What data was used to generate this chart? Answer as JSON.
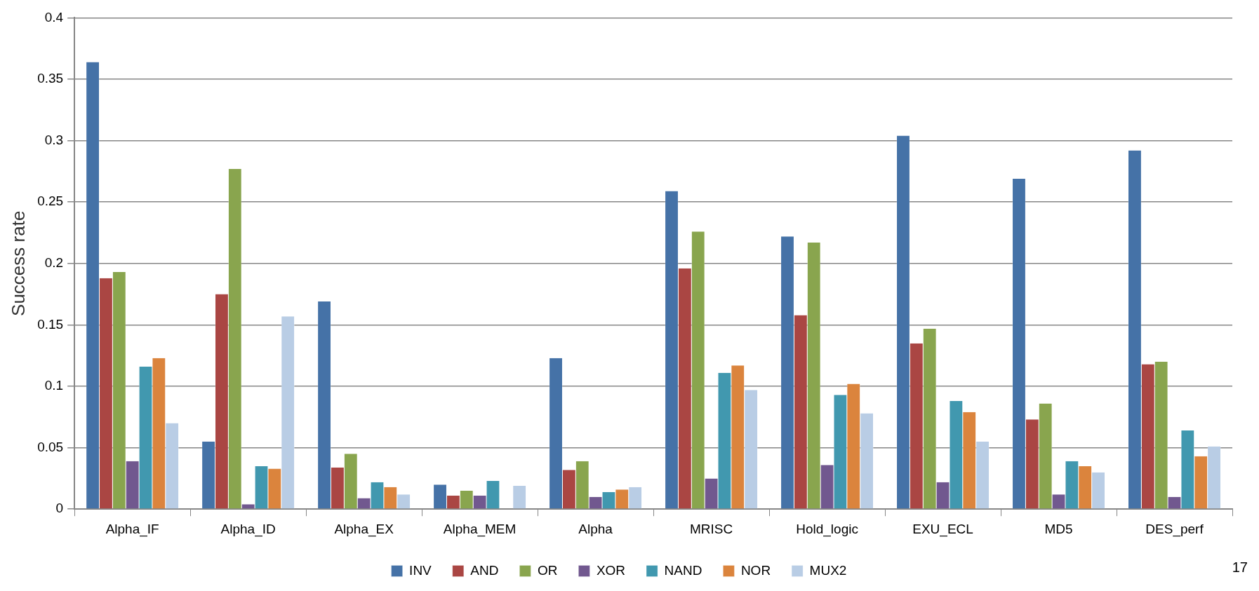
{
  "chart_data": {
    "type": "bar",
    "ylabel": "Success rate",
    "categories": [
      "Alpha_IF",
      "Alpha_ID",
      "Alpha_EX",
      "Alpha_MEM",
      "Alpha",
      "MRISC",
      "Hold_logic",
      "EXU_ECL",
      "MD5",
      "DES_perf"
    ],
    "series": [
      {
        "name": "INV",
        "color": "#4572a7",
        "values": [
          0.364,
          0.055,
          0.169,
          0.02,
          0.123,
          0.259,
          0.222,
          0.304,
          0.269,
          0.292
        ]
      },
      {
        "name": "AND",
        "color": "#aa4643",
        "values": [
          0.188,
          0.175,
          0.034,
          0.011,
          0.032,
          0.196,
          0.158,
          0.135,
          0.073,
          0.118
        ]
      },
      {
        "name": "OR",
        "color": "#89a54e",
        "values": [
          0.193,
          0.277,
          0.045,
          0.015,
          0.039,
          0.226,
          0.217,
          0.147,
          0.086,
          0.12
        ]
      },
      {
        "name": "XOR",
        "color": "#71588f",
        "values": [
          0.039,
          0.004,
          0.009,
          0.011,
          0.01,
          0.025,
          0.036,
          0.022,
          0.012,
          0.01
        ]
      },
      {
        "name": "NAND",
        "color": "#4198af",
        "values": [
          0.116,
          0.035,
          0.022,
          0.023,
          0.014,
          0.111,
          0.093,
          0.088,
          0.039,
          0.064
        ]
      },
      {
        "name": "NOR",
        "color": "#db843d",
        "values": [
          0.123,
          0.033,
          0.018,
          0,
          0.016,
          0.117,
          0.102,
          0.079,
          0.035,
          0.043
        ]
      },
      {
        "name": "MUX2",
        "color": "#b9cde5",
        "values": [
          0.07,
          0.157,
          0.012,
          0.019,
          0.018,
          0.097,
          0.078,
          0.055,
          0.03,
          0.051
        ]
      }
    ],
    "ylim": [
      0,
      0.4
    ],
    "yticks": [
      0,
      0.05,
      0.1,
      0.15,
      0.2,
      0.25,
      0.3,
      0.35,
      0.4
    ],
    "grid": "y",
    "legend": "bottom",
    "annotations": [
      "17"
    ]
  }
}
